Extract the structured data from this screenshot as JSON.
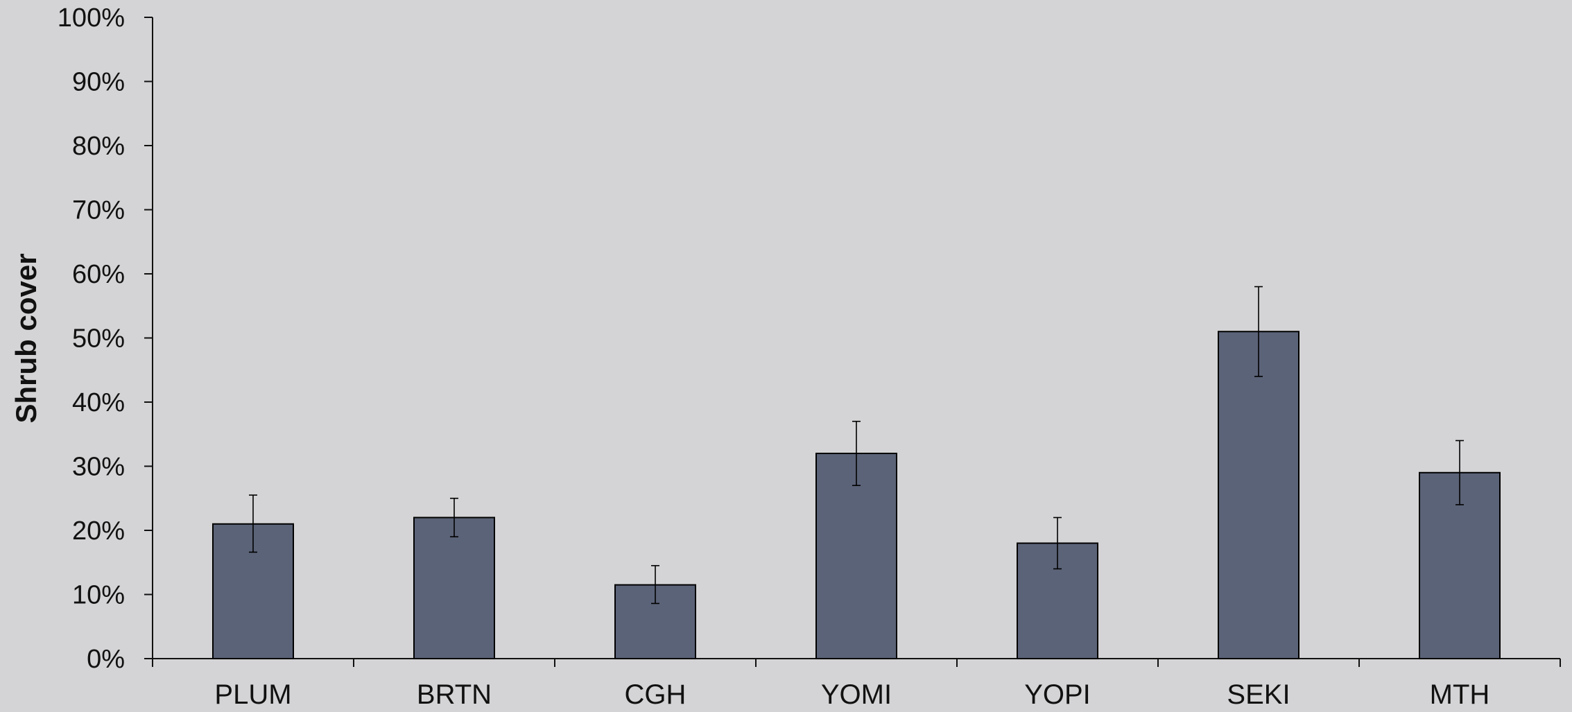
{
  "chart_data": {
    "type": "bar",
    "ylabel": "Shrub cover",
    "xlabel": "",
    "categories": [
      "PLUM",
      "BRTN",
      "CGH",
      "YOMI",
      "YOPI",
      "SEKI",
      "MTH"
    ],
    "values": [
      21,
      22,
      11.5,
      32,
      18,
      51,
      29
    ],
    "error_low": [
      16.6,
      19,
      8.6,
      27,
      14,
      44,
      24
    ],
    "error_high": [
      25.5,
      25,
      14.5,
      37,
      22,
      58,
      34
    ],
    "ylim": [
      0,
      100
    ],
    "yticks": [
      "0%",
      "10%",
      "20%",
      "30%",
      "40%",
      "50%",
      "60%",
      "70%",
      "80%",
      "90%",
      "100%"
    ],
    "bar_color": "#5b6378",
    "grid": false,
    "legend": "none"
  }
}
